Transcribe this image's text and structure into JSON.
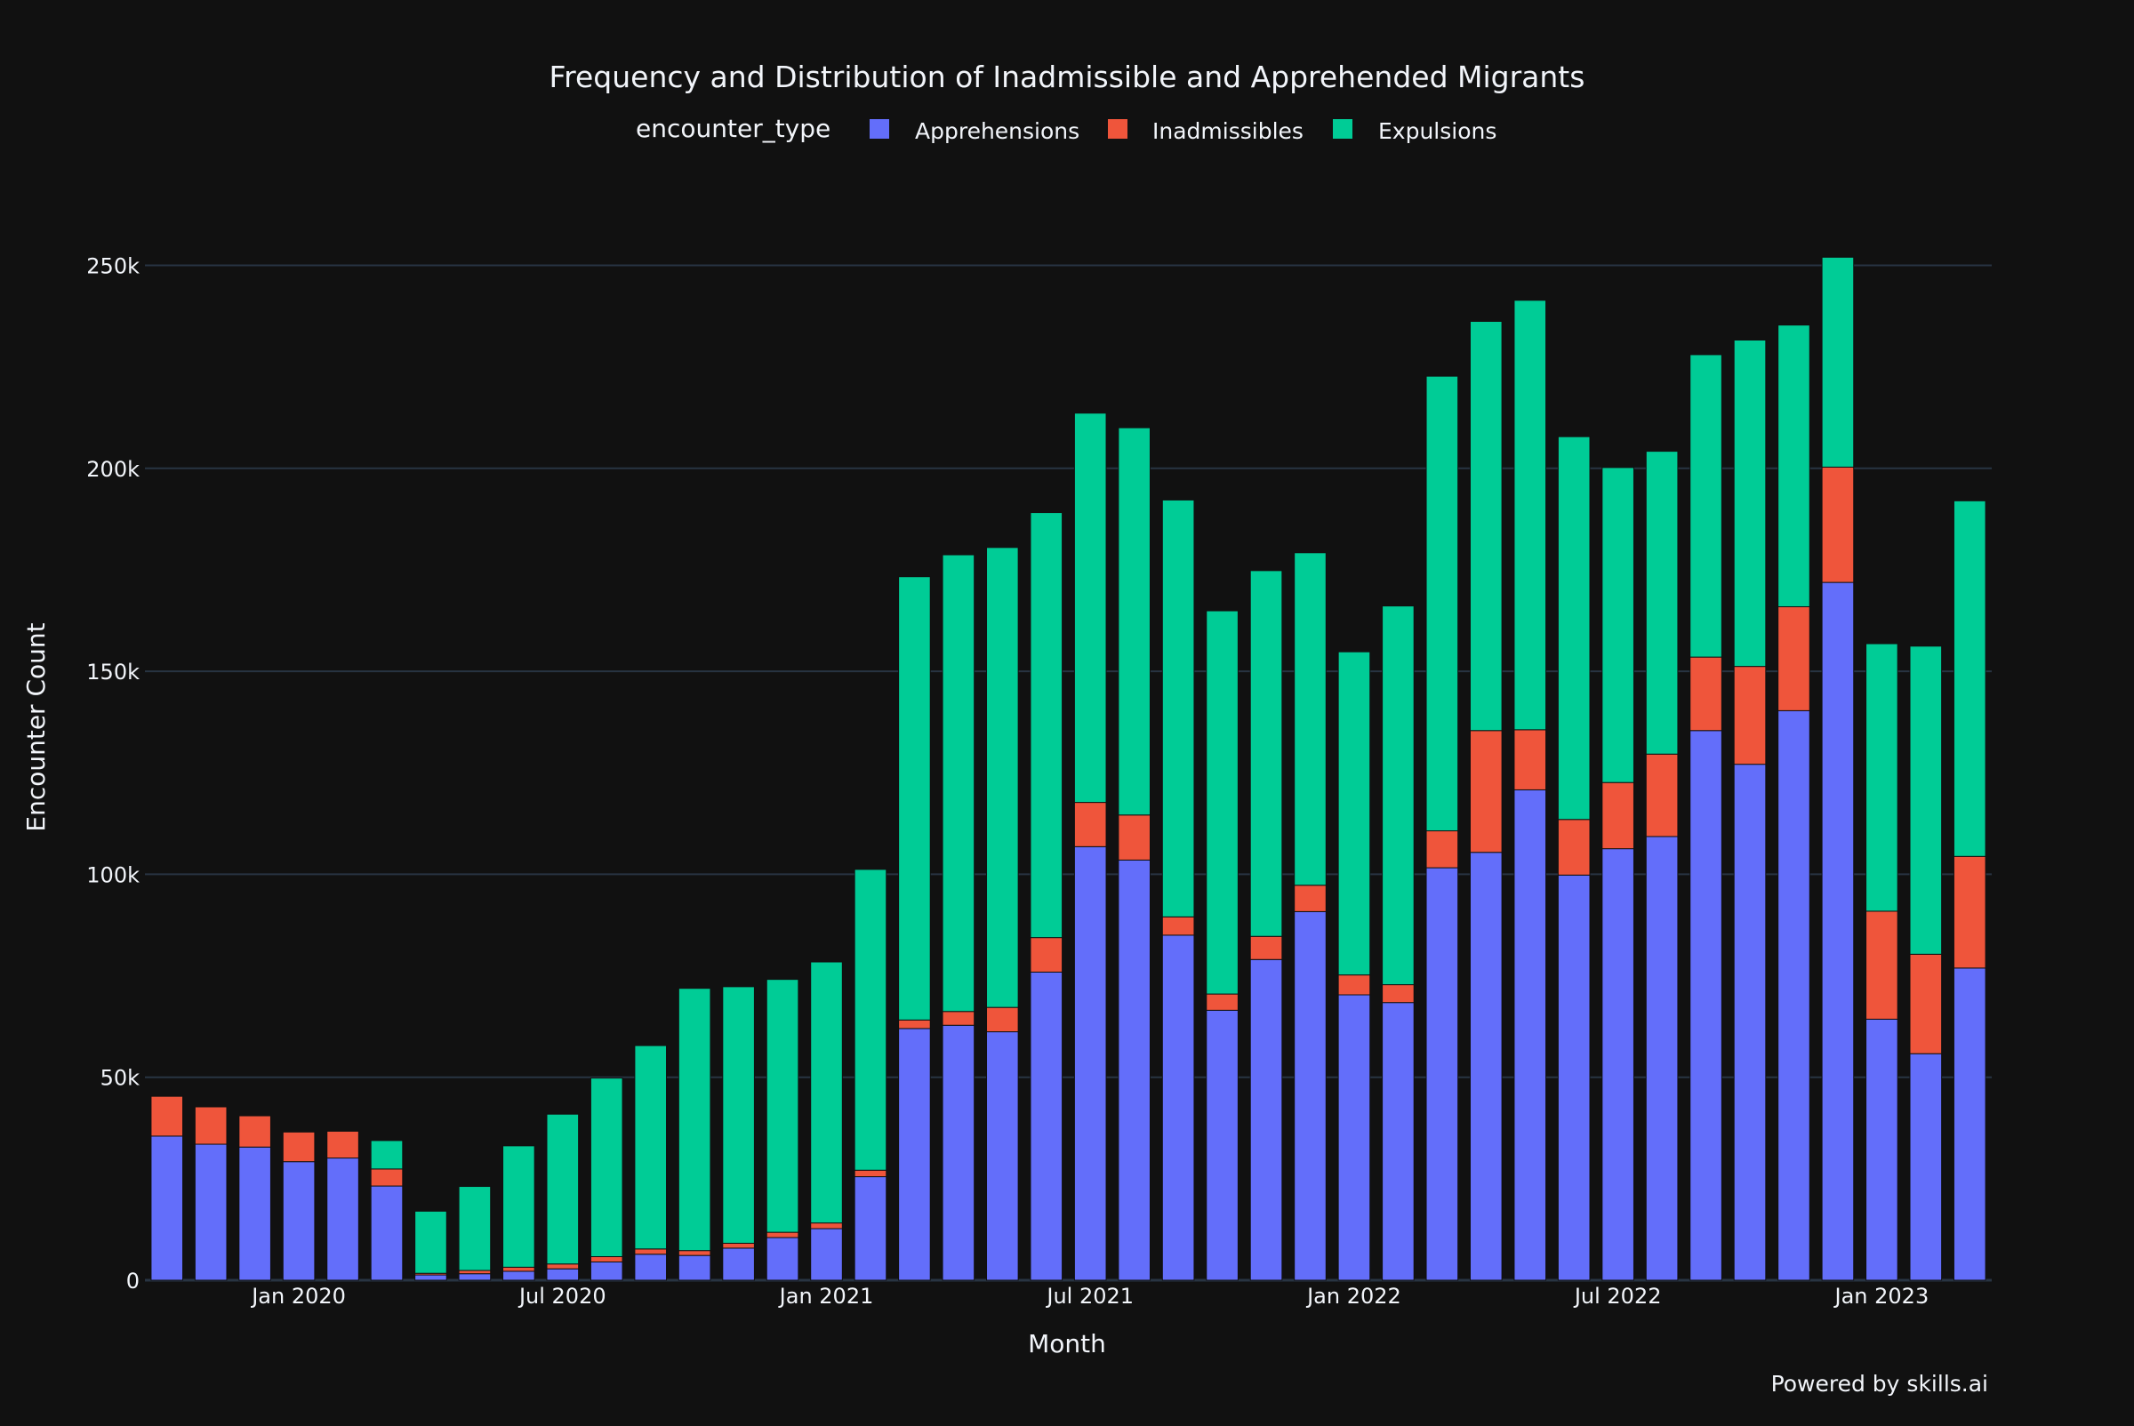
{
  "chart_data": {
    "type": "bar",
    "stacked": true,
    "title": "Frequency and Distribution of Inadmissible and Apprehended Migrants",
    "xlabel": "Month",
    "ylabel": "Encounter Count",
    "legend_title": "encounter_type",
    "legend_position": "top-center",
    "ylim": [
      0,
      265000
    ],
    "y_ticks": [
      0,
      50000,
      100000,
      150000,
      200000,
      250000
    ],
    "y_tick_labels": [
      "0",
      "50k",
      "100k",
      "150k",
      "200k",
      "250k"
    ],
    "x_tick_labels": [
      {
        "label": "Jan 2020",
        "category": "2020-01"
      },
      {
        "label": "Jul 2020",
        "category": "2020-07"
      },
      {
        "label": "Jan 2021",
        "category": "2021-01"
      },
      {
        "label": "Jul 2021",
        "category": "2021-07"
      },
      {
        "label": "Jan 2022",
        "category": "2022-01"
      },
      {
        "label": "Jul 2022",
        "category": "2022-07"
      },
      {
        "label": "Jan 2023",
        "category": "2023-01"
      }
    ],
    "grid": true,
    "categories": [
      "2019-10",
      "2019-11",
      "2019-12",
      "2020-01",
      "2020-02",
      "2020-03",
      "2020-04",
      "2020-05",
      "2020-06",
      "2020-07",
      "2020-08",
      "2020-09",
      "2020-10",
      "2020-11",
      "2020-12",
      "2021-01",
      "2021-02",
      "2021-03",
      "2021-04",
      "2021-05",
      "2021-06",
      "2021-07",
      "2021-08",
      "2021-09",
      "2021-10",
      "2021-11",
      "2021-12",
      "2022-01",
      "2022-02",
      "2022-03",
      "2022-04",
      "2022-05",
      "2022-06",
      "2022-07",
      "2022-08",
      "2022-09",
      "2022-10",
      "2022-11",
      "2022-12",
      "2023-01",
      "2023-02",
      "2023-03"
    ],
    "series": [
      {
        "name": "Apprehensions",
        "color": "#636efa",
        "values": [
          35500,
          33500,
          32800,
          29200,
          30100,
          23200,
          1300,
          1600,
          2200,
          2800,
          4500,
          6400,
          6100,
          7900,
          10500,
          12700,
          25500,
          62000,
          62800,
          61200,
          75900,
          106800,
          103500,
          85000,
          66500,
          79000,
          90800,
          70300,
          68400,
          101600,
          105400,
          120800,
          99800,
          106300,
          109300,
          135400,
          127100,
          140300,
          171900,
          64300,
          55800,
          76900
        ]
      },
      {
        "name": "Inadmissibles",
        "color": "#ef553b",
        "values": [
          9800,
          9200,
          7700,
          7300,
          6600,
          4200,
          400,
          800,
          1000,
          1200,
          1300,
          1300,
          1200,
          1200,
          1300,
          1400,
          1600,
          2100,
          3400,
          6000,
          8500,
          10900,
          11100,
          4500,
          4000,
          5700,
          6500,
          4900,
          4400,
          9100,
          30000,
          14800,
          13700,
          16300,
          20300,
          18100,
          24100,
          25600,
          28400,
          26600,
          24500,
          27500
        ]
      },
      {
        "name": "Expulsions",
        "color": "#00cc96",
        "values": [
          0,
          0,
          0,
          0,
          0,
          7000,
          15300,
          20700,
          29900,
          36900,
          44000,
          50100,
          64600,
          63200,
          62300,
          64300,
          74100,
          109200,
          112500,
          113300,
          104700,
          95900,
          95400,
          102700,
          94400,
          90100,
          81900,
          79600,
          93300,
          112000,
          100800,
          105800,
          94300,
          77600,
          74600,
          74500,
          80400,
          69400,
          51700,
          65900,
          75900,
          87600
        ]
      }
    ]
  },
  "footer": {
    "credit": "Powered by skills.ai"
  }
}
